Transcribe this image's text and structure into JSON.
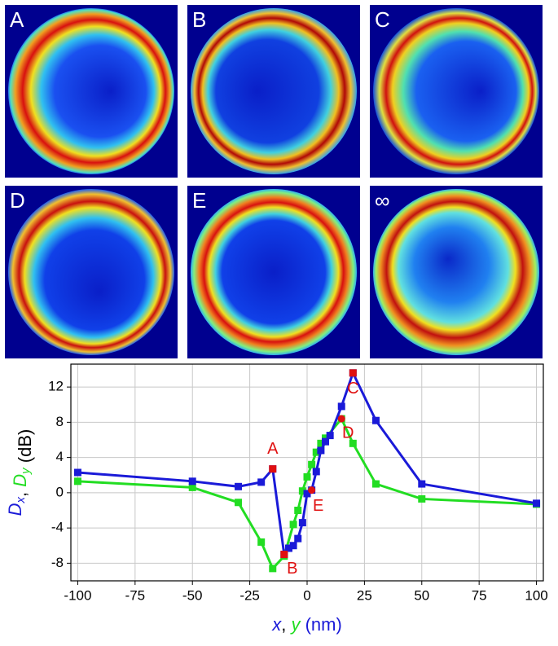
{
  "panels": [
    "A",
    "B",
    "C",
    "D",
    "E",
    "∞"
  ],
  "chart_data": {
    "type": "line",
    "xlabel": [
      {
        "text": "x",
        "color": "#1a1ad8",
        "italic": true
      },
      {
        "text": ", ",
        "color": "#000000"
      },
      {
        "text": "y",
        "color": "#22dd22",
        "italic": true
      },
      {
        "text": " (nm)",
        "color": "#1a1ad8"
      }
    ],
    "ylabel": [
      {
        "text": "D",
        "sub": "x",
        "color": "#1a1ad8",
        "italic": true
      },
      {
        "text": ", ",
        "color": "#000000"
      },
      {
        "text": "D",
        "sub": "y",
        "color": "#22dd22",
        "italic": true
      },
      {
        "text": " (dB)",
        "color": "#000000"
      }
    ],
    "xlim": [
      -103,
      103
    ],
    "ylim": [
      -10,
      14.6
    ],
    "xticks": [
      -100,
      -75,
      -50,
      -25,
      0,
      25,
      50,
      75,
      100
    ],
    "yticks": [
      -8,
      -4,
      0,
      4,
      8,
      12
    ],
    "grid": true,
    "series": [
      {
        "color": "#22dd22",
        "x": [
          -100,
          -50,
          -30,
          -20,
          -15,
          -10,
          -6,
          -4,
          -2,
          0,
          2,
          4,
          6,
          8,
          15,
          20,
          30,
          50,
          100
        ],
        "values": [
          1.3,
          0.6,
          -1.1,
          -5.6,
          -8.6,
          -7.2,
          -3.6,
          -2.0,
          0.2,
          1.8,
          3.2,
          4.6,
          5.6,
          6.2,
          8.4,
          5.6,
          1.0,
          -0.7,
          -1.3
        ]
      },
      {
        "color": "#1a1ad8",
        "x": [
          -100,
          -50,
          -30,
          -20,
          -15,
          -10,
          -8,
          -6,
          -4,
          -2,
          0,
          2,
          4,
          6,
          8,
          10,
          15,
          20,
          30,
          50,
          100
        ],
        "values": [
          2.3,
          1.3,
          0.7,
          1.2,
          2.7,
          -7.0,
          -6.3,
          -6.0,
          -5.2,
          -3.4,
          -0.1,
          0.3,
          2.4,
          4.8,
          5.8,
          6.5,
          9.8,
          13.6,
          8.2,
          1.0,
          -1.2
        ]
      }
    ],
    "annotations": [
      {
        "label": "A",
        "x": -15,
        "y": 2.7,
        "shape": "square"
      },
      {
        "label": "B",
        "x": -10,
        "y": -7.0,
        "shape": "square"
      },
      {
        "label": "C",
        "x": 20,
        "y": 13.6,
        "shape": "square"
      },
      {
        "label": "D",
        "x": 15,
        "y": 8.4,
        "shape": "circle"
      },
      {
        "label": "E",
        "x": 2,
        "y": 0.3,
        "shape": "circle"
      }
    ],
    "annotation_color": "#e01010"
  }
}
